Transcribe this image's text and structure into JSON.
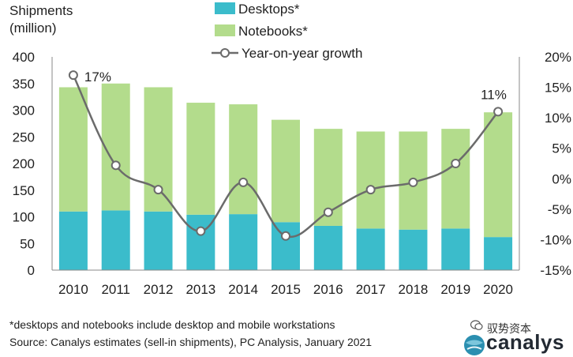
{
  "chart_data": {
    "type": "bar",
    "stacked": true,
    "ylabel": "Shipments\n(million)",
    "categories": [
      "2010",
      "2011",
      "2012",
      "2013",
      "2014",
      "2015",
      "2016",
      "2017",
      "2018",
      "2019",
      "2020"
    ],
    "series": [
      {
        "name": "Desktops*",
        "type": "bar",
        "color": "#3bbccb",
        "values": [
          110,
          112,
          110,
          104,
          105,
          90,
          83,
          78,
          76,
          78,
          62
        ]
      },
      {
        "name": "Notebooks*",
        "type": "bar",
        "color": "#b3dc8c",
        "values": [
          233,
          238,
          233,
          210,
          206,
          192,
          182,
          182,
          184,
          187,
          234
        ]
      },
      {
        "name": "Year-on-year growth",
        "type": "line",
        "axis": "right",
        "color": "#6b6b6b",
        "values": [
          17,
          2.2,
          -1.8,
          -8.6,
          -0.6,
          -9.4,
          -5.5,
          -1.8,
          -0.6,
          2.5,
          11
        ]
      }
    ],
    "ylim": [
      0,
      400
    ],
    "yticks": [
      "0",
      "50",
      "100",
      "150",
      "200",
      "250",
      "300",
      "350",
      "400"
    ],
    "y2lim": [
      -15,
      20
    ],
    "y2ticks": [
      "-15%",
      "-10%",
      "-5%",
      "0%",
      "5%",
      "10%",
      "15%",
      "20%"
    ],
    "annotations": [
      {
        "label": "17%",
        "category": "2010"
      },
      {
        "label": "11%",
        "category": "2020"
      }
    ],
    "legend_position": "top-center"
  },
  "footnotes": {
    "note": "*desktops and notebooks include desktop and mobile workstations",
    "source": "Source: Canalys estimates (sell-in shipments), PC Analysis, January 2021"
  },
  "watermark": {
    "text": "驭势资本",
    "icon": "wechat-icon"
  },
  "brand": {
    "name": "canalys",
    "icon": "globe-icon"
  }
}
